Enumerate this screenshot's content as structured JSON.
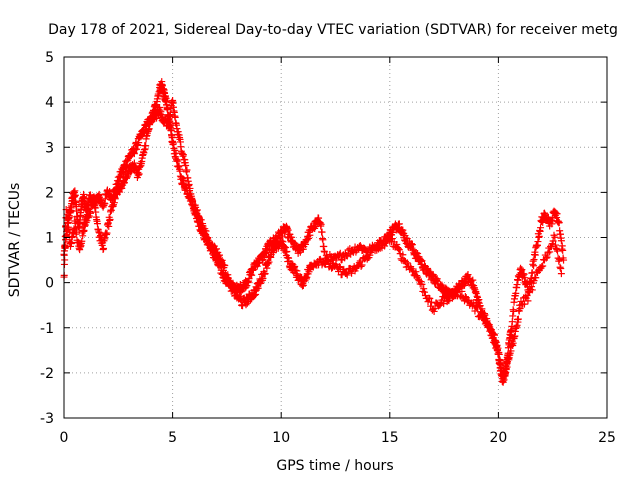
{
  "chart_data": {
    "type": "scatter",
    "title": "Day 178 of 2021, Sidereal Day-to-day VTEC variation (SDTVAR) for receiver metg",
    "xlabel": "GPS time / hours",
    "ylabel": "SDTVAR / TECUs",
    "xlim": [
      0,
      25
    ],
    "ylim": [
      -3,
      5
    ],
    "xticks": [
      "0",
      "5",
      "10",
      "15",
      "20",
      "25"
    ],
    "yticks": [
      "-3",
      "-2",
      "-1",
      "0",
      "1",
      "2",
      "3",
      "4",
      "5"
    ],
    "grid": true,
    "marker": "plus",
    "color": "#ff0000",
    "series": [
      {
        "name": "SDTVAR",
        "x": [
          0.0,
          0.1,
          0.2,
          0.3,
          0.4,
          0.5,
          0.6,
          0.7,
          0.8,
          0.9,
          1.0,
          1.2,
          1.4,
          1.6,
          1.8,
          2.0,
          2.2,
          2.4,
          2.6,
          2.8,
          3.0,
          3.2,
          3.4,
          3.6,
          3.8,
          4.0,
          4.2,
          4.4,
          4.5,
          4.6,
          4.7,
          4.8,
          4.9,
          5.0,
          5.2,
          5.4,
          5.6,
          5.8,
          6.0,
          6.2,
          6.4,
          6.6,
          6.8,
          7.0,
          7.2,
          7.4,
          7.6,
          7.8,
          8.0,
          8.2,
          8.4,
          8.6,
          8.8,
          9.0,
          9.2,
          9.4,
          9.6,
          9.8,
          10.0,
          10.2,
          10.4,
          10.6,
          10.8,
          11.0,
          11.2,
          11.4,
          11.6,
          11.8,
          12.0,
          12.4,
          12.8,
          13.2,
          13.6,
          14.0,
          14.4,
          14.8,
          15.0,
          15.2,
          15.4,
          15.6,
          15.8,
          16.0,
          16.2,
          16.4,
          16.6,
          16.8,
          17.0,
          17.2,
          17.4,
          17.6,
          17.8,
          18.0,
          18.2,
          18.4,
          18.6,
          18.8,
          19.0,
          19.2,
          19.4,
          19.6,
          19.8,
          20.0,
          20.1,
          20.2,
          20.3,
          20.4,
          20.5,
          20.6,
          20.8,
          21.0,
          21.2,
          21.4,
          21.6,
          21.8,
          22.0,
          22.2,
          22.4,
          22.6,
          22.8,
          23.0
        ],
        "y": [
          0.6,
          1.0,
          1.4,
          1.6,
          1.9,
          2.0,
          1.5,
          1.2,
          1.7,
          1.9,
          1.6,
          1.9,
          1.8,
          1.9,
          1.7,
          2.0,
          1.9,
          2.1,
          2.4,
          2.6,
          2.8,
          2.9,
          3.1,
          3.3,
          3.5,
          3.6,
          3.9,
          4.3,
          4.4,
          4.2,
          4.0,
          3.7,
          3.4,
          3.1,
          2.7,
          2.3,
          2.1,
          1.9,
          1.7,
          1.5,
          1.2,
          1.0,
          0.7,
          0.5,
          0.3,
          0.1,
          0.0,
          -0.1,
          -0.15,
          -0.1,
          0.0,
          0.2,
          0.4,
          0.5,
          0.6,
          0.8,
          0.9,
          1.0,
          1.1,
          1.2,
          1.0,
          0.8,
          0.7,
          0.8,
          1.0,
          1.2,
          1.3,
          1.4,
          0.6,
          0.5,
          0.6,
          0.7,
          0.8,
          0.7,
          0.8,
          0.9,
          1.1,
          1.2,
          1.3,
          1.1,
          0.9,
          0.8,
          0.6,
          0.5,
          0.3,
          0.2,
          0.1,
          0.0,
          -0.1,
          -0.2,
          -0.3,
          -0.2,
          -0.1,
          0.0,
          0.1,
          0.0,
          -0.3,
          -0.6,
          -0.8,
          -1.0,
          -1.3,
          -1.6,
          -1.9,
          -2.1,
          -2.0,
          -1.7,
          -1.3,
          -1.0,
          -0.2,
          0.3,
          0.1,
          -0.2,
          0.4,
          0.9,
          1.4,
          1.5,
          1.3,
          1.6,
          1.3,
          0.5
        ],
        "x2": [
          0.0,
          0.1,
          0.3,
          0.5,
          0.7,
          0.9,
          1.0,
          1.2,
          1.4,
          1.6,
          1.8,
          2.0,
          2.2,
          2.4,
          2.6,
          2.8,
          3.0,
          3.2,
          3.4,
          3.6,
          3.8,
          4.0,
          4.2,
          4.4,
          4.6,
          4.8,
          5.0,
          5.2,
          5.4,
          5.6,
          5.8,
          6.0,
          6.2,
          6.4,
          6.6,
          6.8,
          7.0,
          7.2,
          7.4,
          7.6,
          7.8,
          8.0,
          8.2,
          8.4,
          8.6,
          8.8,
          9.0,
          9.2,
          9.4,
          9.6,
          9.8,
          10.0,
          10.2,
          10.4,
          10.6,
          10.8,
          11.0,
          11.2,
          11.4,
          11.8,
          12.2,
          12.6,
          13.0,
          13.4,
          13.8,
          14.2,
          14.6,
          15.0,
          15.4,
          15.8,
          16.2,
          16.6,
          17.0,
          17.4,
          17.8,
          18.2,
          18.6,
          19.0,
          19.4,
          19.8,
          20.0,
          20.2,
          20.4,
          20.6,
          20.8,
          21.0,
          21.4,
          21.8,
          22.2,
          22.6,
          22.9
        ],
        "y2": [
          0.1,
          1.6,
          0.8,
          1.3,
          0.7,
          1.2,
          1.4,
          1.6,
          1.8,
          1.1,
          0.8,
          1.2,
          1.6,
          2.0,
          2.1,
          2.3,
          2.5,
          2.6,
          2.4,
          2.7,
          3.2,
          3.6,
          3.7,
          3.8,
          3.6,
          3.5,
          4.0,
          3.4,
          3.0,
          2.6,
          2.0,
          1.6,
          1.3,
          1.1,
          0.9,
          0.8,
          0.7,
          0.5,
          0.3,
          0.0,
          -0.2,
          -0.3,
          -0.45,
          -0.4,
          -0.3,
          -0.2,
          0.0,
          0.2,
          0.5,
          0.7,
          0.8,
          0.9,
          0.7,
          0.4,
          0.3,
          0.1,
          0.0,
          0.2,
          0.4,
          0.5,
          0.4,
          0.3,
          0.2,
          0.3,
          0.5,
          0.7,
          0.9,
          1.0,
          0.7,
          0.4,
          0.2,
          -0.2,
          -0.6,
          -0.4,
          -0.3,
          -0.2,
          -0.4,
          -0.6,
          -0.9,
          -1.2,
          -1.5,
          -2.2,
          -1.8,
          -1.4,
          -1.1,
          -0.5,
          -0.3,
          0.2,
          0.6,
          1.0,
          0.2
        ]
      }
    ]
  }
}
